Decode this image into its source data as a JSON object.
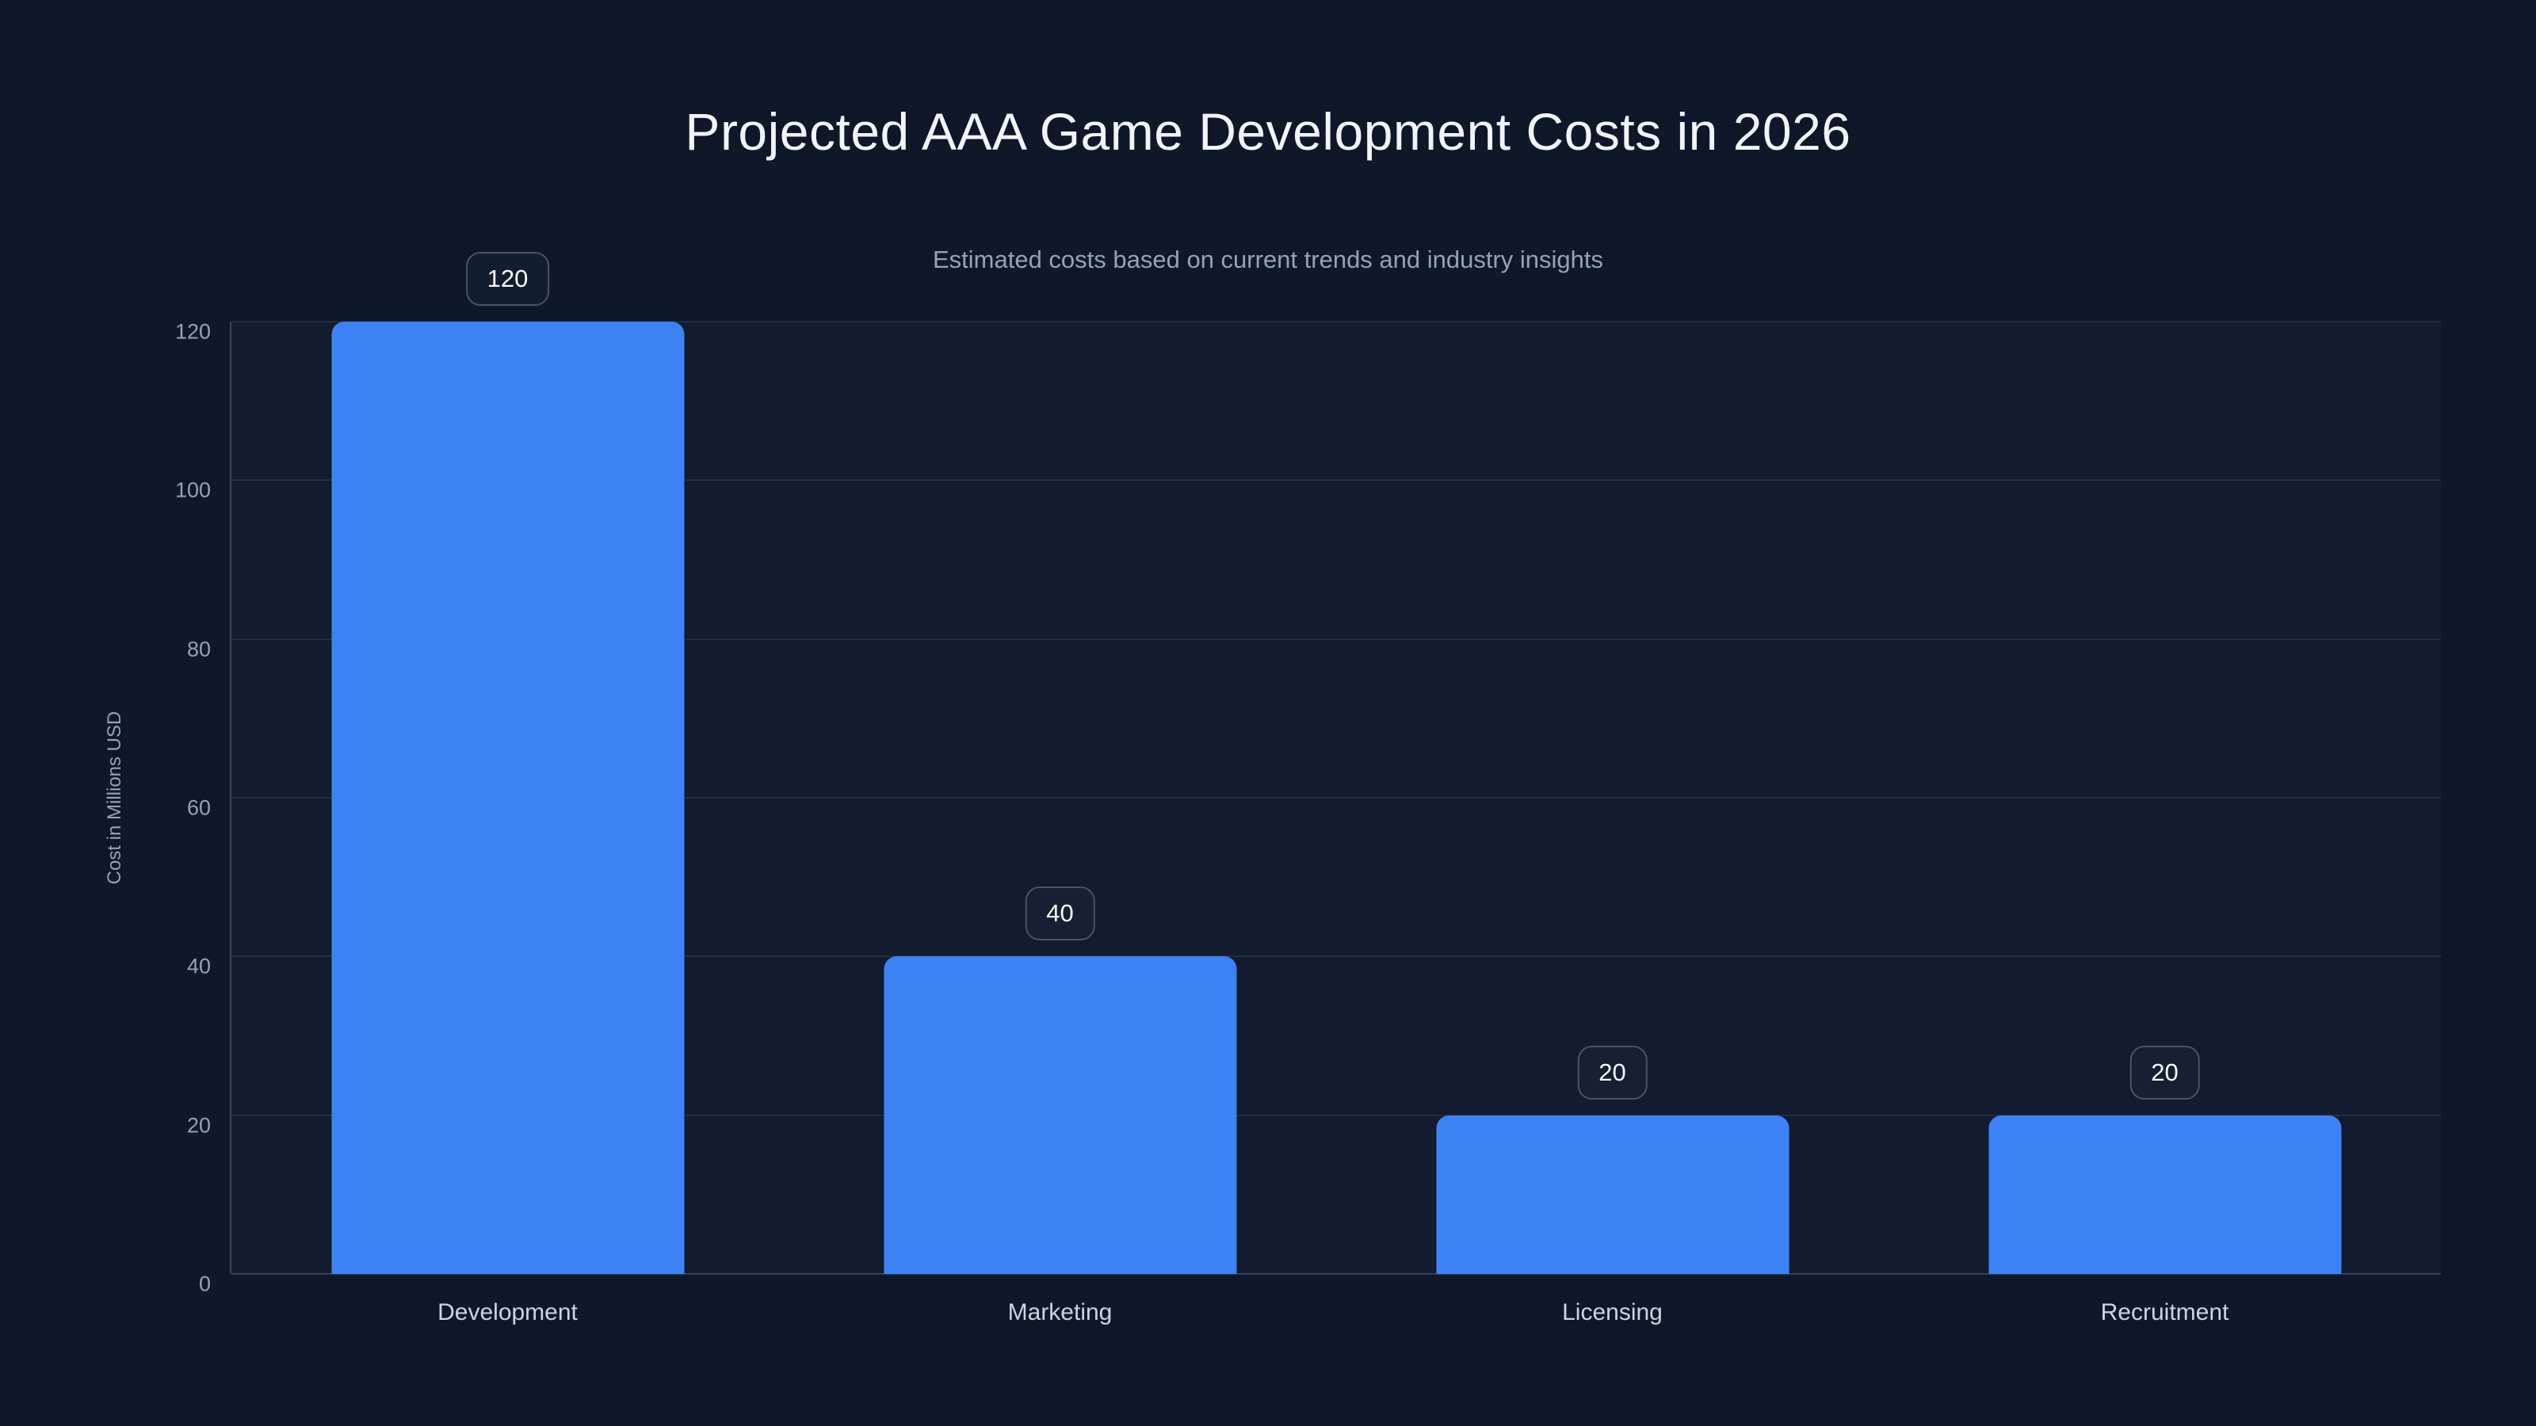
{
  "header": {
    "title": "Projected AAA Game Development Costs in 2026",
    "subtitle": "Estimated costs based on current trends and industry insights"
  },
  "chart_data": {
    "type": "bar",
    "title": "Projected AAA Game Development Costs in 2026",
    "subtitle": "Estimated costs based on current trends and industry insights",
    "categories": [
      "Development",
      "Marketing",
      "Licensing",
      "Recruitment"
    ],
    "values": [
      120,
      40,
      20,
      20
    ],
    "value_labels": [
      "120",
      "40",
      "20",
      "20"
    ],
    "xlabel": "",
    "ylabel": "Cost in Millions USD",
    "ylim": [
      0,
      120
    ],
    "yticks": [
      0,
      20,
      40,
      60,
      80,
      100,
      120
    ],
    "grid": "horizontal",
    "legend": "none"
  },
  "colors": {
    "background": "#0f172a",
    "bar": "#3b82f6",
    "title": "#f1f5f9",
    "subtitle": "#94a3b8",
    "tick": "#94a3b8",
    "xlabel": "#cbd5e1",
    "grid": "rgba(148,163,184,0.14)",
    "axis": "rgba(148,163,184,0.30)",
    "badge_border": "#475569",
    "badge_bg": "rgba(30,41,59,0.35)",
    "badge_text": "#f8fafc"
  }
}
